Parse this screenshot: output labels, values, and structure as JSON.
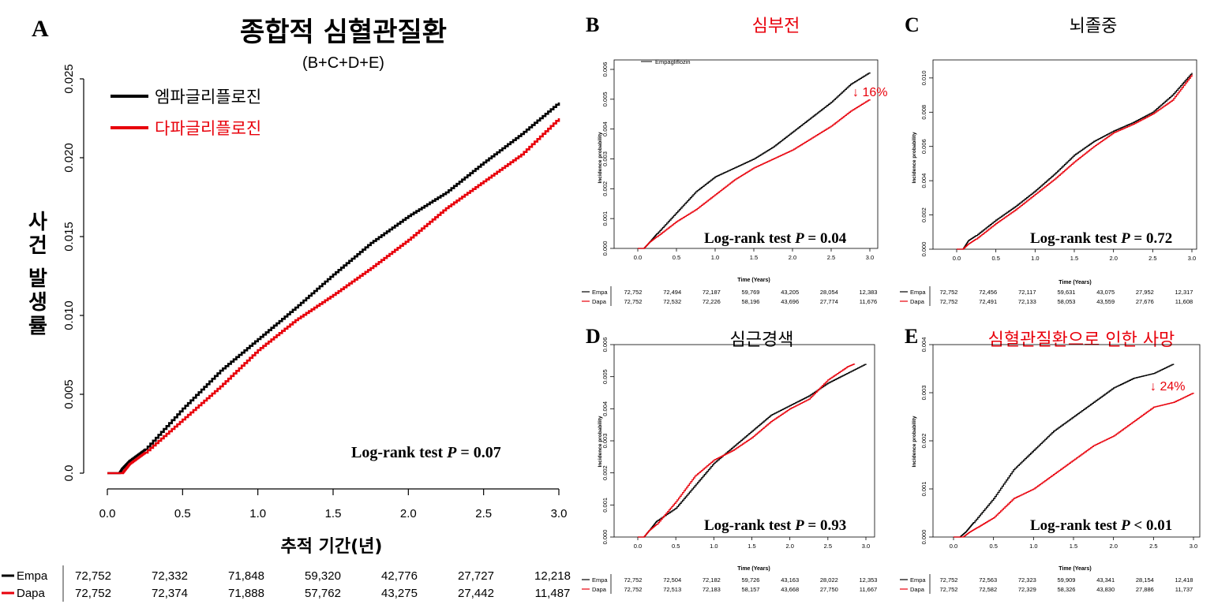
{
  "colors": {
    "empa": "#000000",
    "dapa": "#e8000b",
    "title_red": "#e8000b"
  },
  "chart_data": [
    {
      "id": "A",
      "type": "line",
      "panel_letter": "A",
      "title": "종합적 심혈관질환",
      "subtitle": "(B+C+D+E)",
      "title_color": "black",
      "xlabel": "추적 기간(년)",
      "ylabel": "사건 발생률",
      "xlim": [
        0,
        3.0
      ],
      "ylim": [
        0,
        0.025
      ],
      "xticks": [
        0.0,
        0.5,
        1.0,
        1.5,
        2.0,
        2.5,
        3.0
      ],
      "xtick_labels": [
        "0.0",
        "0.5",
        "1.0",
        "1.5",
        "2.0",
        "2.5",
        "3.0"
      ],
      "yticks": [
        0.0,
        0.005,
        0.01,
        0.015,
        0.02,
        0.025
      ],
      "ytick_labels": [
        "0.0",
        "0.005",
        "0.010",
        "0.015",
        "0.020",
        "0.025"
      ],
      "legend": [
        "엠파글리플로진",
        "다파글리플로진"
      ],
      "logrank": "Log-rank test ",
      "logrank_p": "P",
      "logrank_val": " = 0.07",
      "series": [
        {
          "name": "엠파글리플로진",
          "x": [
            0,
            0.08,
            0.1,
            0.15,
            0.25,
            0.5,
            0.75,
            1.0,
            1.25,
            1.5,
            1.75,
            2.0,
            2.25,
            2.5,
            2.75,
            3.0
          ],
          "y": [
            0,
            0,
            0.0003,
            0.0008,
            0.0015,
            0.0041,
            0.0065,
            0.0085,
            0.0105,
            0.0126,
            0.0146,
            0.0163,
            0.0178,
            0.0197,
            0.0215,
            0.0235
          ]
        },
        {
          "name": "다파글리플로진",
          "x": [
            0,
            0.1,
            0.15,
            0.25,
            0.5,
            0.75,
            1.0,
            1.25,
            1.5,
            1.75,
            2.0,
            2.25,
            2.5,
            2.75,
            3.0
          ],
          "y": [
            0,
            0,
            0.0006,
            0.0013,
            0.0034,
            0.0055,
            0.0078,
            0.0097,
            0.0113,
            0.013,
            0.0148,
            0.0168,
            0.0185,
            0.0202,
            0.0225
          ]
        }
      ],
      "risk_table": {
        "rows": [
          {
            "label": "Empa",
            "values": [
              "72,752",
              "72,332",
              "71,848",
              "59,320",
              "42,776",
              "27,727",
              "12,218"
            ]
          },
          {
            "label": "Dapa",
            "values": [
              "72,752",
              "72,374",
              "71,888",
              "57,762",
              "43,275",
              "27,442",
              "11,487"
            ]
          }
        ]
      }
    },
    {
      "id": "B",
      "type": "line",
      "panel_letter": "B",
      "title": "심부전",
      "title_color": "red",
      "xlabel": "Time (Years)",
      "ylabel": "Incidence probability",
      "xlim": [
        0,
        3.0
      ],
      "ylim": [
        0,
        0.006
      ],
      "xticks": [
        0.0,
        0.5,
        1.0,
        1.5,
        2.0,
        2.5,
        3.0
      ],
      "xtick_labels": [
        "0.0",
        "0.5",
        "1.0",
        "1.5",
        "2.0",
        "2.5",
        "3.0"
      ],
      "yticks": [
        0.0,
        0.001,
        0.002,
        0.003,
        0.004,
        0.005,
        0.006
      ],
      "ytick_labels": [
        "0.000",
        "0.001",
        "0.002",
        "0.003",
        "0.004",
        "0.005",
        "0.006"
      ],
      "legend": [
        "Empagliflozin"
      ],
      "annotation": "↓ 16%",
      "logrank": "Log-rank test ",
      "logrank_p": "P",
      "logrank_val": " = 0.04",
      "series": [
        {
          "name": "Empagliflozin",
          "x": [
            0,
            0.08,
            0.15,
            0.25,
            0.5,
            0.75,
            1.0,
            1.25,
            1.5,
            1.75,
            2.0,
            2.25,
            2.5,
            2.75,
            3.0
          ],
          "y": [
            0,
            0,
            0.0002,
            0.0005,
            0.0012,
            0.0019,
            0.0024,
            0.0027,
            0.003,
            0.0034,
            0.0039,
            0.0044,
            0.0049,
            0.0055,
            0.0059
          ]
        },
        {
          "name": "",
          "x": [
            0,
            0.08,
            0.15,
            0.25,
            0.5,
            0.75,
            1.0,
            1.25,
            1.5,
            1.75,
            2.0,
            2.25,
            2.5,
            2.75,
            3.0
          ],
          "y": [
            0,
            0,
            0.0002,
            0.0004,
            0.0009,
            0.0013,
            0.0018,
            0.0023,
            0.0027,
            0.003,
            0.0033,
            0.0037,
            0.0041,
            0.0046,
            0.005
          ]
        }
      ],
      "risk_table": {
        "rows": [
          {
            "label": "Empa",
            "values": [
              "72,752",
              "72,494",
              "72,187",
              "59,769",
              "43,205",
              "28,054",
              "12,383"
            ]
          },
          {
            "label": "Dapa",
            "values": [
              "72,752",
              "72,532",
              "72,226",
              "58,196",
              "43,696",
              "27,774",
              "11,676"
            ]
          }
        ]
      }
    },
    {
      "id": "C",
      "type": "line",
      "panel_letter": "C",
      "title": "뇌졸중",
      "title_color": "black",
      "xlabel": "Time (Years)",
      "ylabel": "Incidence probability",
      "xlim": [
        0,
        3.0
      ],
      "ylim": [
        0,
        0.0105
      ],
      "xticks": [
        0.0,
        0.5,
        1.0,
        1.5,
        2.0,
        2.5,
        3.0
      ],
      "xtick_labels": [
        "0.0",
        "0.5",
        "1.0",
        "1.5",
        "2.0",
        "2.5",
        "3.0"
      ],
      "yticks": [
        0.0,
        0.002,
        0.004,
        0.006,
        0.008,
        0.01
      ],
      "ytick_labels": [
        "0.000",
        "0.002",
        "0.004",
        "0.006",
        "0.008",
        "0.010"
      ],
      "logrank": "Log-rank test ",
      "logrank_p": "P",
      "logrank_val": " = 0.72",
      "series": [
        {
          "name": "",
          "x": [
            0,
            0.08,
            0.15,
            0.25,
            0.5,
            0.75,
            1.0,
            1.25,
            1.5,
            1.75,
            2.0,
            2.25,
            2.5,
            2.75,
            3.0
          ],
          "y": [
            0,
            0,
            0.0005,
            0.0008,
            0.0017,
            0.0025,
            0.0034,
            0.0044,
            0.0055,
            0.0063,
            0.0069,
            0.0074,
            0.008,
            0.009,
            0.0103
          ]
        },
        {
          "name": "",
          "x": [
            0,
            0.08,
            0.15,
            0.25,
            0.5,
            0.75,
            1.0,
            1.25,
            1.5,
            1.75,
            2.0,
            2.25,
            2.5,
            2.75,
            3.0
          ],
          "y": [
            0,
            0,
            0.0003,
            0.0006,
            0.0015,
            0.0023,
            0.0032,
            0.0041,
            0.0051,
            0.006,
            0.0068,
            0.0073,
            0.0079,
            0.0087,
            0.0102
          ]
        }
      ],
      "risk_table": {
        "rows": [
          {
            "label": "Empa",
            "values": [
              "72,752",
              "72,456",
              "72,117",
              "59,631",
              "43,075",
              "27,952",
              "12,317"
            ]
          },
          {
            "label": "Dapa",
            "values": [
              "72,752",
              "72,491",
              "72,133",
              "58,053",
              "43,559",
              "27,676",
              "11,608"
            ]
          }
        ]
      }
    },
    {
      "id": "D",
      "type": "line",
      "panel_letter": "D",
      "title": "심근경색",
      "title_color": "black",
      "xlabel": "Time (Years)",
      "ylabel": "Incidence probability",
      "xlim": [
        0,
        3.0
      ],
      "ylim": [
        0,
        0.006
      ],
      "xticks": [
        0.0,
        0.5,
        1.0,
        1.5,
        2.0,
        2.5,
        3.0
      ],
      "xtick_labels": [
        "0.0",
        "0.5",
        "1.0",
        "1.5",
        "2.0",
        "2.5",
        "3.0"
      ],
      "yticks": [
        0.0,
        0.001,
        0.002,
        0.003,
        0.004,
        0.005,
        0.006
      ],
      "ytick_labels": [
        "0.000",
        "0.001",
        "0.002",
        "0.003",
        "0.004",
        "0.005",
        "0.006"
      ],
      "logrank": "Log-rank test ",
      "logrank_p": "P",
      "logrank_val": " = 0.93",
      "series": [
        {
          "name": "",
          "x": [
            0,
            0.08,
            0.15,
            0.25,
            0.5,
            0.75,
            1.0,
            1.25,
            1.5,
            1.75,
            2.0,
            2.25,
            2.5,
            2.75,
            3.0
          ],
          "y": [
            0,
            0,
            0.0002,
            0.0005,
            0.0009,
            0.0016,
            0.0023,
            0.0028,
            0.0033,
            0.0038,
            0.0041,
            0.0044,
            0.0048,
            0.0051,
            0.0054
          ]
        },
        {
          "name": "",
          "x": [
            0,
            0.08,
            0.15,
            0.25,
            0.5,
            0.75,
            1.0,
            1.25,
            1.5,
            1.75,
            2.0,
            2.25,
            2.5,
            2.75,
            2.85
          ],
          "y": [
            0,
            0,
            0.0002,
            0.0004,
            0.0011,
            0.0019,
            0.0024,
            0.0027,
            0.0031,
            0.0036,
            0.004,
            0.0043,
            0.0049,
            0.0053,
            0.0054
          ]
        }
      ],
      "risk_table": {
        "rows": [
          {
            "label": "Empa",
            "values": [
              "72,752",
              "72,504",
              "72,182",
              "59,726",
              "43,163",
              "28,022",
              "12,353"
            ]
          },
          {
            "label": "Dapa",
            "values": [
              "72,752",
              "72,513",
              "72,183",
              "58,157",
              "43,668",
              "27,750",
              "11,667"
            ]
          }
        ]
      }
    },
    {
      "id": "E",
      "type": "line",
      "panel_letter": "E",
      "title": "심혈관질환으로 인한 사망",
      "title_color": "red",
      "xlabel": "Time (Years)",
      "ylabel": "Incidence probability",
      "xlim": [
        0,
        3.0
      ],
      "ylim": [
        0,
        0.004
      ],
      "xticks": [
        0.0,
        0.5,
        1.0,
        1.5,
        2.0,
        2.5,
        3.0
      ],
      "xtick_labels": [
        "0.0",
        "0.5",
        "1.0",
        "1.5",
        "2.0",
        "2.5",
        "3.0"
      ],
      "yticks": [
        0.0,
        0.001,
        0.002,
        0.003,
        0.004
      ],
      "ytick_labels": [
        "0.000",
        "0.001",
        "0.002",
        "0.003",
        "0.004"
      ],
      "annotation": "↓ 24%",
      "logrank": "Log-rank test ",
      "logrank_p": "P",
      "logrank_val": " < 0.01",
      "series": [
        {
          "name": "",
          "x": [
            0,
            0.08,
            0.15,
            0.25,
            0.5,
            0.75,
            1.0,
            1.25,
            1.5,
            1.75,
            2.0,
            2.25,
            2.5,
            2.75
          ],
          "y": [
            0,
            0,
            0.0001,
            0.0003,
            0.0008,
            0.0014,
            0.0018,
            0.0022,
            0.0025,
            0.0028,
            0.0031,
            0.0033,
            0.0034,
            0.0036
          ]
        },
        {
          "name": "",
          "x": [
            0,
            0.12,
            0.2,
            0.3,
            0.5,
            0.75,
            1.0,
            1.25,
            1.5,
            1.75,
            2.0,
            2.25,
            2.5,
            2.75,
            3.0
          ],
          "y": [
            0,
            0,
            0.0001,
            0.0002,
            0.0004,
            0.0008,
            0.001,
            0.0013,
            0.0016,
            0.0019,
            0.0021,
            0.0024,
            0.0027,
            0.0028,
            0.003
          ]
        }
      ],
      "risk_table": {
        "rows": [
          {
            "label": "Empa",
            "values": [
              "72,752",
              "72,563",
              "72,323",
              "59,909",
              "43,341",
              "28,154",
              "12,418"
            ]
          },
          {
            "label": "Dapa",
            "values": [
              "72,752",
              "72,582",
              "72,329",
              "58,326",
              "43,830",
              "27,886",
              "11,737"
            ]
          }
        ]
      }
    }
  ]
}
